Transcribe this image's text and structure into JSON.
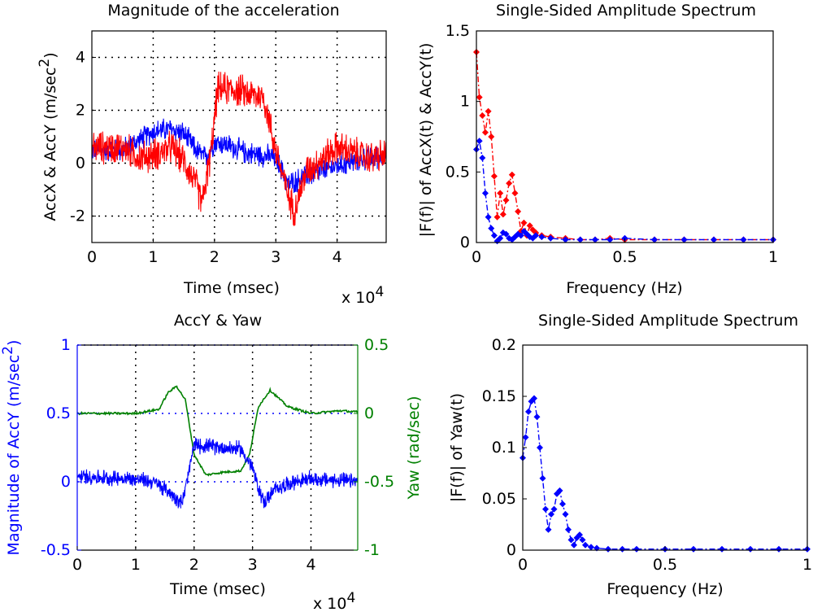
{
  "chart_data": [
    {
      "type": "line",
      "title": "Magnitude of the acceleration",
      "xlabel": "Time (msec)",
      "ylabel": "AccX & AccY (m/sec",
      "ylabel_sup": "2",
      "ylabel_end": ")",
      "x_exponent_base": "x 10",
      "x_exponent_power": "4",
      "xlim": [
        0,
        4.8
      ],
      "ylim": [
        -3,
        5
      ],
      "xticks": [
        "0",
        "1",
        "2",
        "3",
        "4"
      ],
      "yticks": [
        "-2",
        "0",
        "2",
        "4"
      ],
      "grid": true,
      "series": [
        {
          "name": "AccX",
          "color": "#0000ff",
          "x": [
            0,
            0.5,
            0.8,
            1.0,
            1.3,
            1.5,
            1.7,
            1.85,
            2.0,
            2.2,
            2.5,
            2.8,
            3.0,
            3.2,
            3.5,
            4.0,
            4.5,
            4.8
          ],
          "y": [
            0.5,
            0.5,
            0.9,
            1.2,
            1.3,
            1.1,
            0.5,
            0.2,
            0.8,
            0.7,
            0.4,
            0.3,
            0.2,
            -0.8,
            -0.5,
            -0.1,
            0.2,
            0.3
          ]
        },
        {
          "name": "AccY",
          "color": "#ff0000",
          "x": [
            0,
            0.5,
            0.8,
            1.0,
            1.3,
            1.5,
            1.7,
            1.8,
            1.95,
            2.05,
            2.3,
            2.6,
            2.8,
            3.0,
            3.2,
            3.3,
            3.5,
            4.0,
            4.5,
            4.8
          ],
          "y": [
            0.6,
            0.6,
            0.2,
            0.3,
            0.6,
            0.1,
            -0.8,
            -1.5,
            0.5,
            2.8,
            2.8,
            2.6,
            2.5,
            0.5,
            -1.2,
            -1.8,
            -0.3,
            0.6,
            0.2,
            0.3
          ]
        }
      ]
    },
    {
      "type": "line",
      "title": "Single-Sided Amplitude Spectrum",
      "xlabel": "Frequency (Hz)",
      "ylabel": "|F(f)| of AccX(t) & AccY(t)",
      "xlim": [
        0,
        1
      ],
      "ylim": [
        0,
        1.5
      ],
      "xticks": [
        "0",
        "0.5",
        "1"
      ],
      "yticks": [
        "0",
        "0.5",
        "1",
        "1.5"
      ],
      "grid": false,
      "series": [
        {
          "name": "|F(f)| of AccX(t)",
          "color": "#0000ff",
          "x": [
            0.0,
            0.01,
            0.02,
            0.03,
            0.04,
            0.05,
            0.06,
            0.07,
            0.08,
            0.09,
            0.1,
            0.11,
            0.12,
            0.13,
            0.14,
            0.15,
            0.16,
            0.17,
            0.18,
            0.19,
            0.2,
            0.22,
            0.25,
            0.3,
            0.35,
            0.4,
            0.45,
            0.5,
            0.6,
            0.7,
            0.8,
            0.9,
            1.0
          ],
          "y": [
            0.66,
            0.72,
            0.6,
            0.35,
            0.18,
            0.1,
            0.05,
            0.01,
            0.03,
            0.07,
            0.06,
            0.03,
            0.02,
            0.04,
            0.06,
            0.05,
            0.08,
            0.06,
            0.04,
            0.03,
            0.05,
            0.04,
            0.03,
            0.02,
            0.02,
            0.02,
            0.02,
            0.03,
            0.02,
            0.02,
            0.02,
            0.02,
            0.02
          ]
        },
        {
          "name": "|F(f)| of AccY(t)",
          "color": "#ff0000",
          "x": [
            0.0,
            0.01,
            0.02,
            0.03,
            0.04,
            0.05,
            0.06,
            0.07,
            0.08,
            0.09,
            0.1,
            0.11,
            0.12,
            0.13,
            0.14,
            0.15,
            0.16,
            0.17,
            0.18,
            0.19,
            0.2,
            0.22,
            0.25,
            0.3,
            0.35,
            0.4,
            0.45,
            0.5,
            0.6,
            0.7,
            0.8,
            0.9,
            1.0
          ],
          "y": [
            1.35,
            1.03,
            0.9,
            0.78,
            0.93,
            0.75,
            0.47,
            0.18,
            0.35,
            0.2,
            0.3,
            0.42,
            0.48,
            0.35,
            0.22,
            0.08,
            0.14,
            0.05,
            0.12,
            0.09,
            0.07,
            0.05,
            0.04,
            0.03,
            0.02,
            0.02,
            0.03,
            0.02,
            0.02,
            0.02,
            0.02,
            0.02,
            0.02
          ]
        }
      ]
    },
    {
      "type": "line",
      "title": "AccY & Yaw",
      "xlabel": "Time (msec)",
      "ylabel_left": "Magnitude of AccY (m/sec",
      "ylabel_left_sup": "2",
      "ylabel_left_end": ")",
      "ylabel_right": "Yaw (rad/sec)",
      "x_exponent_base": "x 10",
      "x_exponent_power": "4",
      "xlim": [
        0,
        4.8
      ],
      "ylim_left": [
        -0.5,
        1
      ],
      "ylim_right": [
        -1,
        0.5
      ],
      "xticks": [
        "0",
        "1",
        "2",
        "3",
        "4"
      ],
      "yticks_left": [
        "-0.5",
        "0",
        "0.5",
        "1"
      ],
      "yticks_right": [
        "-1",
        "-0.5",
        "0",
        "0.5"
      ],
      "grid": true,
      "series": [
        {
          "name": "AccY",
          "axis": "left",
          "color": "#0000ff",
          "x": [
            0,
            0.5,
            1.0,
            1.3,
            1.5,
            1.7,
            1.8,
            1.9,
            2.0,
            2.5,
            2.8,
            3.0,
            3.1,
            3.2,
            3.4,
            3.7,
            4.0,
            4.5,
            4.8
          ],
          "y": [
            0.04,
            0.03,
            0.02,
            0.0,
            -0.05,
            -0.12,
            -0.15,
            0.05,
            0.27,
            0.25,
            0.24,
            0.1,
            -0.05,
            -0.15,
            -0.05,
            0.0,
            0.02,
            0.01,
            0.0
          ]
        },
        {
          "name": "Yaw",
          "axis": "right",
          "color": "#008000",
          "x": [
            0,
            0.5,
            1.0,
            1.4,
            1.55,
            1.7,
            1.85,
            2.0,
            2.2,
            2.5,
            2.8,
            2.95,
            3.1,
            3.3,
            3.6,
            4.0,
            4.5,
            4.8
          ],
          "y": [
            0.0,
            0.0,
            0.0,
            0.03,
            0.15,
            0.2,
            0.1,
            -0.3,
            -0.45,
            -0.43,
            -0.42,
            -0.3,
            0.05,
            0.17,
            0.05,
            0.0,
            0.02,
            0.01
          ]
        }
      ]
    },
    {
      "type": "line",
      "title": "Single-Sided Amplitude Spectrum",
      "xlabel": "Frequency (Hz)",
      "ylabel": "|F(f)| of Yaw(t)",
      "xlim": [
        0,
        1
      ],
      "ylim": [
        0,
        0.2
      ],
      "xticks": [
        "0",
        "0.5",
        "1"
      ],
      "yticks": [
        "0",
        "0.05",
        "0.1",
        "0.15",
        "0.2"
      ],
      "grid": false,
      "series": [
        {
          "name": "|F(f)| of Yaw(t)",
          "color": "#0000ff",
          "x": [
            0.0,
            0.01,
            0.02,
            0.03,
            0.04,
            0.05,
            0.06,
            0.07,
            0.08,
            0.09,
            0.1,
            0.11,
            0.12,
            0.13,
            0.14,
            0.15,
            0.16,
            0.17,
            0.18,
            0.19,
            0.2,
            0.21,
            0.22,
            0.24,
            0.26,
            0.3,
            0.35,
            0.4,
            0.5,
            0.6,
            0.7,
            0.8,
            0.9,
            1.0
          ],
          "y": [
            0.09,
            0.11,
            0.135,
            0.145,
            0.148,
            0.13,
            0.1,
            0.07,
            0.04,
            0.02,
            0.035,
            0.04,
            0.055,
            0.058,
            0.045,
            0.035,
            0.02,
            0.01,
            0.005,
            0.012,
            0.015,
            0.01,
            0.005,
            0.003,
            0.002,
            0.001,
            0.001,
            0.001,
            0.001,
            0.001,
            0.001,
            0.001,
            0.001,
            0.001
          ]
        }
      ]
    }
  ]
}
